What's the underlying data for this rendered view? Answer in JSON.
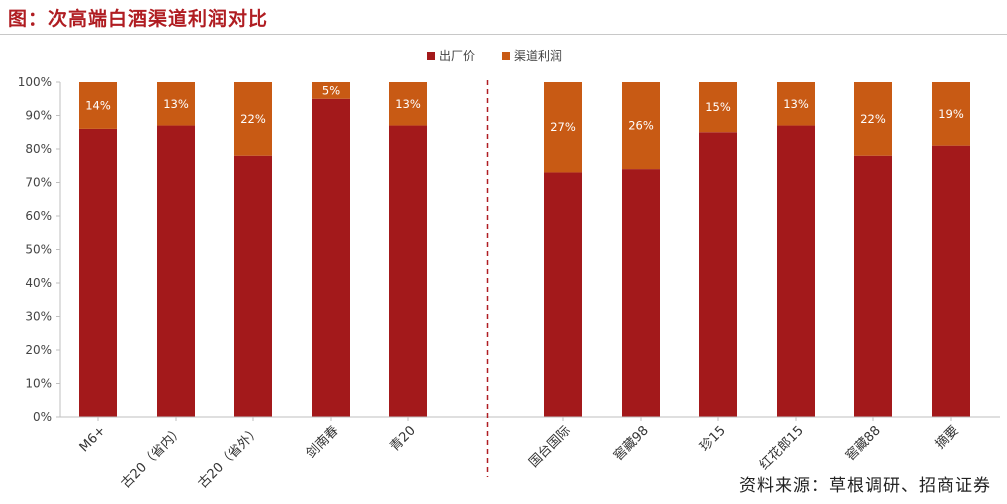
{
  "title": "图：次高端白酒渠道利润对比",
  "source": "资料来源：草根调研、招商证券",
  "colors": {
    "factory": "#a3191b",
    "channel": "#c85a14",
    "divider": "#b01d22",
    "title": "#b01d22"
  },
  "chart_data": {
    "type": "bar",
    "stacked": true,
    "categories": [
      "M6+",
      "古20（省内）",
      "古20（省外）",
      "剑南春",
      "青20",
      "国台国际",
      "窖藏98",
      "珍15",
      "红花郎15",
      "窖藏88",
      "摘要"
    ],
    "series": [
      {
        "name": "出厂价",
        "values": [
          86,
          87,
          78,
          95,
          87,
          73,
          74,
          85,
          87,
          78,
          81
        ]
      },
      {
        "name": "渠道利润",
        "values": [
          14,
          13,
          22,
          5,
          13,
          27,
          26,
          15,
          13,
          22,
          19
        ]
      }
    ],
    "data_labels": [
      "14%",
      "13%",
      "22%",
      "5%",
      "13%",
      "27%",
      "26%",
      "15%",
      "13%",
      "22%",
      "19%"
    ],
    "yticks": [
      "0%",
      "10%",
      "20%",
      "30%",
      "40%",
      "50%",
      "60%",
      "70%",
      "80%",
      "90%",
      "100%"
    ],
    "ylim": [
      0,
      100
    ],
    "legend": "top-center",
    "divider_after_index": 4
  }
}
